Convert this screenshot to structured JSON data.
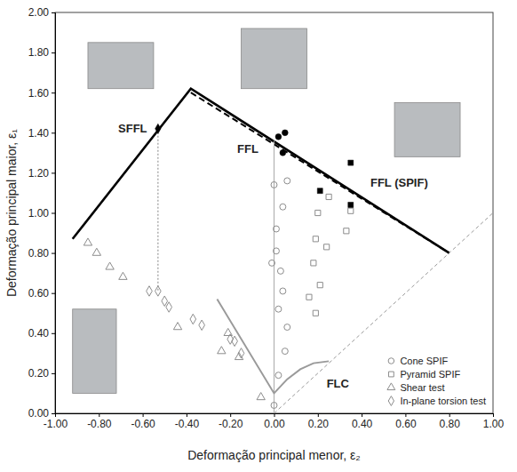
{
  "chart_data": {
    "type": "scatter",
    "x_label": "Deformação principal menor, ε₂",
    "y_label": "Deformação principal maior, ε₁",
    "xlim": [
      -1.0,
      1.0
    ],
    "ylim": [
      0.0,
      2.0
    ],
    "xticks": [
      {
        "value": -1.0,
        "label": "-1.00"
      },
      {
        "value": -0.8,
        "label": "-0.80"
      },
      {
        "value": -0.6,
        "label": "-0.60"
      },
      {
        "value": -0.4,
        "label": "-0.40"
      },
      {
        "value": -0.2,
        "label": "-0.20"
      },
      {
        "value": 0.0,
        "label": "0.00"
      },
      {
        "value": 0.2,
        "label": "0.20"
      },
      {
        "value": 0.4,
        "label": "0.40"
      },
      {
        "value": 0.6,
        "label": "0.60"
      },
      {
        "value": 0.8,
        "label": "0.80"
      },
      {
        "value": 1.0,
        "label": "1.00"
      }
    ],
    "yticks": [
      {
        "value": 0.0,
        "label": "0.00"
      },
      {
        "value": 0.2,
        "label": "0.20"
      },
      {
        "value": 0.4,
        "label": "0.40"
      },
      {
        "value": 0.6,
        "label": "0.60"
      },
      {
        "value": 0.8,
        "label": "0.80"
      },
      {
        "value": 1.0,
        "label": "1.00"
      },
      {
        "value": 1.2,
        "label": "1.20"
      },
      {
        "value": 1.4,
        "label": "1.40"
      },
      {
        "value": 1.6,
        "label": "1.60"
      },
      {
        "value": 1.8,
        "label": "1.80"
      },
      {
        "value": 2.0,
        "label": "2.00"
      }
    ],
    "grid": false,
    "legend": "lower right",
    "annotations": [
      {
        "text": "SFFL",
        "x": -0.58,
        "y": 1.4
      },
      {
        "text": "FFL",
        "x": -0.12,
        "y": 1.3
      },
      {
        "text": "FFL (SPIF)",
        "x": 0.44,
        "y": 1.13
      },
      {
        "text": "FLC",
        "x": 0.24,
        "y": 0.13
      }
    ],
    "series": [
      {
        "type": "line",
        "color": "#000000",
        "line_style": "solid",
        "x": [
          -0.92,
          -0.38,
          0.8
        ],
        "values": [
          0.87,
          1.62,
          0.8
        ]
      },
      {
        "type": "line",
        "color": "#000000",
        "line_style": "dashed",
        "x": [
          -0.38,
          0.8
        ],
        "values": [
          1.6,
          0.8
        ]
      },
      {
        "type": "line",
        "color": "#9a9a9a",
        "line_style": "thin-dashed",
        "x": [
          0.0,
          1.0
        ],
        "values": [
          0.0,
          1.0
        ]
      },
      {
        "type": "line",
        "color": "#aaaaaa",
        "line_style": "thin",
        "x": [
          0.0,
          0.0
        ],
        "values": [
          0.0,
          1.36
        ]
      },
      {
        "type": "line",
        "color": "#999999",
        "line_style": "dotted",
        "x": [
          -0.53,
          -0.53
        ],
        "values": [
          1.42,
          0.61
        ]
      },
      {
        "type": "line",
        "color": "#9a9a9a",
        "line_style": "medium",
        "x": [
          -0.26,
          0.0,
          0.06,
          0.12,
          0.18,
          0.25
        ],
        "values": [
          0.57,
          0.1,
          0.17,
          0.22,
          0.25,
          0.26
        ]
      },
      {
        "type": "scatter",
        "color": "#000000",
        "marker": "diamond",
        "x": [
          -0.53
        ],
        "values": [
          1.42
        ]
      },
      {
        "type": "scatter",
        "name": "Cone SPIF",
        "color": "#8c8c8c",
        "marker": "open-circle",
        "x": [
          0.0,
          0.06,
          0.04,
          0.01,
          0.01,
          -0.01,
          0.03,
          0.04,
          0.02,
          0.06,
          0.05,
          0.02,
          0.0
        ],
        "values": [
          1.14,
          1.16,
          1.03,
          0.92,
          0.81,
          0.75,
          0.71,
          0.61,
          0.52,
          0.43,
          0.31,
          0.19,
          0.04
        ]
      },
      {
        "type": "scatter",
        "name": "Pyramid SPIF",
        "color": "#8c8c8c",
        "marker": "open-square",
        "x": [
          0.25,
          0.2,
          0.35,
          0.19,
          0.33,
          0.24,
          0.18,
          0.21,
          0.16,
          0.19
        ],
        "values": [
          1.08,
          1.0,
          1.01,
          0.87,
          0.91,
          0.83,
          0.75,
          0.64,
          0.58,
          0.5
        ]
      },
      {
        "type": "scatter",
        "name": "Shear test",
        "color": "#8c8c8c",
        "marker": "open-triangle",
        "x": [
          -0.85,
          -0.81,
          -0.75,
          -0.69,
          -0.44,
          -0.24,
          -0.21,
          -0.16,
          -0.06
        ],
        "values": [
          0.85,
          0.8,
          0.73,
          0.68,
          0.43,
          0.31,
          0.4,
          0.28,
          0.08
        ]
      },
      {
        "type": "scatter",
        "name": "In-plane torsion test",
        "color": "#8c8c8c",
        "marker": "open-diamond",
        "x": [
          -0.57,
          -0.53,
          -0.5,
          -0.48,
          -0.37,
          -0.33,
          -0.2,
          -0.18,
          -0.15
        ],
        "values": [
          0.61,
          0.61,
          0.56,
          0.53,
          0.47,
          0.44,
          0.37,
          0.36,
          0.3
        ]
      },
      {
        "type": "scatter",
        "color": "#000000",
        "marker": "circle",
        "x": [
          0.02,
          0.05,
          0.04
        ],
        "values": [
          1.38,
          1.4,
          1.3
        ]
      },
      {
        "type": "scatter",
        "color": "#000000",
        "marker": "square",
        "x": [
          0.35,
          0.21,
          0.35
        ],
        "values": [
          1.25,
          1.11,
          1.04
        ]
      }
    ]
  }
}
